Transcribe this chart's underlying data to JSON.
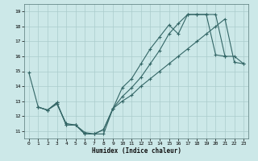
{
  "xlabel": "Humidex (Indice chaleur)",
  "xlim": [
    -0.5,
    23.5
  ],
  "ylim": [
    10.5,
    19.5
  ],
  "xticks": [
    0,
    1,
    2,
    3,
    4,
    5,
    6,
    7,
    8,
    9,
    10,
    11,
    12,
    13,
    14,
    15,
    16,
    17,
    18,
    19,
    20,
    21,
    22,
    23
  ],
  "yticks": [
    11,
    12,
    13,
    14,
    15,
    16,
    17,
    18,
    19
  ],
  "background_color": "#cce8e8",
  "grid_color": "#aacccc",
  "line_color": "#336666",
  "line1_x": [
    0,
    1,
    2,
    3,
    4,
    5,
    6,
    7,
    8,
    9,
    10,
    11,
    12,
    13,
    14,
    15,
    16,
    17,
    18,
    19,
    20,
    21
  ],
  "line1_y": [
    14.9,
    12.6,
    12.4,
    12.9,
    11.4,
    11.4,
    10.8,
    10.8,
    11.1,
    12.5,
    13.9,
    14.5,
    15.5,
    16.5,
    17.3,
    18.1,
    17.5,
    18.8,
    18.8,
    18.8,
    16.1,
    16.0
  ],
  "line2_x": [
    1,
    2,
    3,
    4,
    5,
    6,
    7,
    8,
    9,
    10,
    11,
    12,
    13,
    14,
    15,
    16,
    17,
    18,
    19,
    20,
    21,
    22,
    23
  ],
  "line2_y": [
    12.6,
    12.4,
    12.9,
    11.4,
    11.4,
    10.8,
    10.8,
    11.1,
    12.5,
    13.3,
    13.9,
    14.6,
    15.5,
    16.4,
    17.5,
    18.2,
    18.8,
    18.8,
    18.8,
    18.8,
    16.0,
    16.0,
    15.5
  ],
  "line3_x": [
    1,
    2,
    3,
    4,
    5,
    6,
    7,
    8,
    9,
    10,
    11,
    12,
    13,
    14,
    15,
    16,
    17,
    18,
    19,
    20,
    21,
    22,
    23
  ],
  "line3_y": [
    12.6,
    12.4,
    12.8,
    11.5,
    11.4,
    10.9,
    10.8,
    10.8,
    12.5,
    13.0,
    13.4,
    14.0,
    14.5,
    15.0,
    15.5,
    16.0,
    16.5,
    17.0,
    17.5,
    18.0,
    18.5,
    15.6,
    15.5
  ]
}
